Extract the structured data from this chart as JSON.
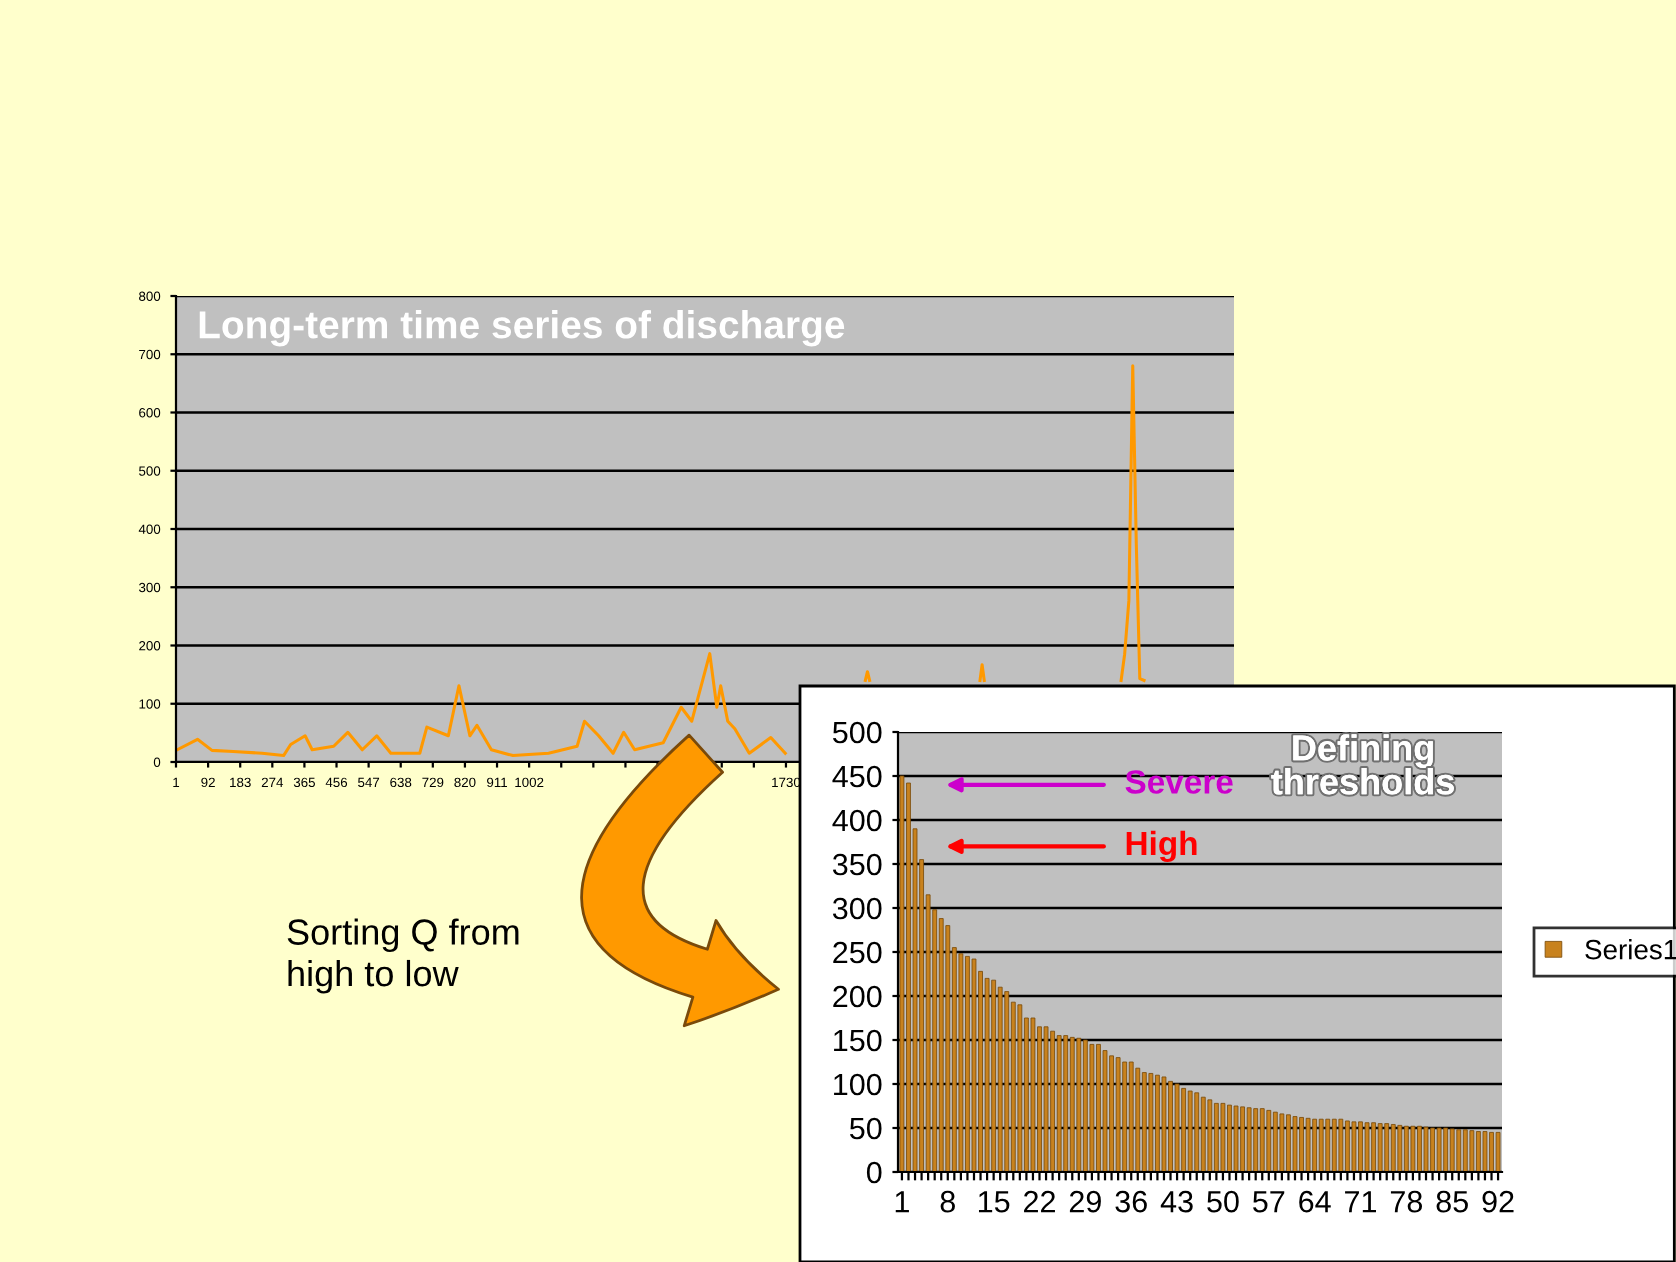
{
  "chart_data": [
    {
      "type": "line",
      "title": "Long-term time series of discharge",
      "xlim": [
        1,
        3000
      ],
      "ylim": [
        0,
        800
      ],
      "yticks": [
        0,
        100,
        200,
        300,
        400,
        500,
        600,
        700,
        800
      ],
      "xticks": [
        1,
        92,
        183,
        274,
        365,
        456,
        547,
        638,
        729,
        820,
        911,
        1002,
        {
          "value": 1093,
          "label": null
        },
        {
          "value": 1184,
          "label": null
        },
        {
          "value": 1275,
          "label": null
        },
        {
          "value": 1366,
          "label": null
        },
        {
          "value": 1457,
          "label": null
        },
        {
          "value": 1548,
          "label": null
        },
        {
          "value": 1639,
          "label": null
        },
        1730
      ],
      "grid": "y",
      "legend": false,
      "marker": "none",
      "line_style": "solid",
      "series": [
        {
          "color": "#ff9900",
          "x": [
            1,
            62,
            103,
            163,
            245,
            306,
            326,
            367,
            387,
            448,
            488,
            529,
            570,
            610,
            692,
            712,
            773,
            803,
            834,
            854,
            895,
            956,
            1057,
            1138,
            1159,
            1199,
            1240,
            1270,
            1301,
            1382,
            1433,
            1463,
            1514,
            1534,
            1545,
            1565,
            1585,
            1626,
            1687,
            1728,
            1768,
            1955,
            1961,
            1967,
            1975,
            2280,
            2286,
            2292,
            2300,
            2680,
            2690,
            2702,
            2713,
            2723,
            2733,
            2745
          ],
          "values": [
            20,
            39,
            20,
            18,
            15,
            11,
            30,
            45,
            21,
            27,
            51,
            21,
            45,
            15,
            15,
            60,
            45,
            131,
            45,
            63,
            21,
            11,
            15,
            27,
            70,
            45,
            15,
            51,
            21,
            33,
            94,
            70,
            186,
            94,
            131,
            70,
            57,
            15,
            42,
            15,
            null,
            140,
            155,
            140,
            null,
            140,
            167,
            140,
            null,
            140,
            185,
            277,
            680,
            375,
            143,
            140
          ]
        }
      ]
    },
    {
      "type": "bar",
      "title": "Defining\nthresholds",
      "legend": "right",
      "grid": "y",
      "ylim": [
        0,
        500
      ],
      "yticks": [
        0,
        50,
        100,
        150,
        200,
        250,
        300,
        350,
        400,
        450,
        500
      ],
      "categories": [
        "1",
        null,
        null,
        null,
        null,
        null,
        null,
        "8",
        null,
        null,
        null,
        null,
        null,
        null,
        "15",
        null,
        null,
        null,
        null,
        null,
        null,
        "22",
        null,
        null,
        null,
        null,
        null,
        null,
        "29",
        null,
        null,
        null,
        null,
        null,
        null,
        "36",
        null,
        null,
        null,
        null,
        null,
        null,
        "43",
        null,
        null,
        null,
        null,
        null,
        null,
        "50",
        null,
        null,
        null,
        null,
        null,
        null,
        "57",
        null,
        null,
        null,
        null,
        null,
        null,
        "64",
        null,
        null,
        null,
        null,
        null,
        null,
        "71",
        null,
        null,
        null,
        null,
        null,
        null,
        "78",
        null,
        null,
        null,
        null,
        null,
        null,
        "85",
        null,
        null,
        null,
        null,
        null,
        null,
        "92"
      ],
      "series": [
        {
          "name": "Series1",
          "color": "#c8821e",
          "values": [
            450,
            442,
            390,
            355,
            315,
            298,
            288,
            280,
            255,
            248,
            245,
            242,
            228,
            220,
            218,
            210,
            205,
            193,
            190,
            175,
            175,
            165,
            165,
            160,
            155,
            155,
            153,
            152,
            150,
            145,
            145,
            138,
            132,
            130,
            125,
            125,
            118,
            113,
            112,
            110,
            108,
            103,
            100,
            95,
            92,
            90,
            85,
            82,
            78,
            78,
            76,
            75,
            74,
            73,
            72,
            72,
            70,
            68,
            66,
            65,
            63,
            62,
            61,
            60,
            60,
            60,
            60,
            60,
            58,
            57,
            57,
            56,
            56,
            55,
            55,
            54,
            53,
            52,
            52,
            52,
            51,
            50,
            50,
            50,
            49,
            48,
            48,
            47,
            46,
            46,
            45,
            45
          ]
        }
      ],
      "annotations": [
        "Severe",
        "High",
        "Sorting Q from\nhigh to low"
      ]
    }
  ]
}
